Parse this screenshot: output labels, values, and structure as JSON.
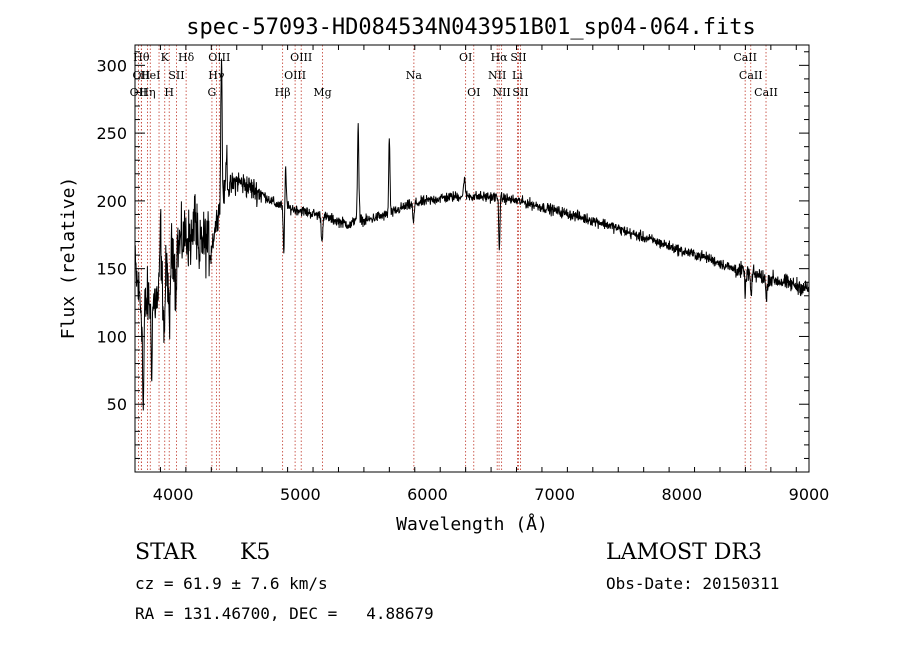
{
  "chart_data": {
    "type": "line",
    "title": "spec-57093-HD084534N043951B01_sp04-064.fits",
    "xlabel": "Wavelength (Å)",
    "ylabel": "Flux (relative)",
    "xlim": [
      3700,
      9000
    ],
    "ylim": [
      0,
      315
    ],
    "xticks": [
      "4000",
      "5000",
      "6000",
      "7000",
      "8000",
      "9000"
    ],
    "yticks": [
      "50",
      "100",
      "150",
      "200",
      "250",
      "300"
    ],
    "lines": [
      {
        "wl": 3727,
        "label": "OII",
        "row": 2
      },
      {
        "wl": 3750,
        "label": "Hθ",
        "row": 0
      },
      {
        "wl": 3750,
        "label": "OII",
        "row": 1
      },
      {
        "wl": 3798,
        "label": "Hη",
        "row": 2
      },
      {
        "wl": 3820,
        "label": "HeI",
        "row": 1
      },
      {
        "wl": 3889,
        "label": "",
        "row": 1
      },
      {
        "wl": 3934,
        "label": "K",
        "row": 0
      },
      {
        "wl": 3969,
        "label": "H",
        "row": 2
      },
      {
        "wl": 4026,
        "label": "SII",
        "row": 1
      },
      {
        "wl": 4102,
        "label": "Hδ",
        "row": 0
      },
      {
        "wl": 4305,
        "label": "G",
        "row": 2
      },
      {
        "wl": 4340,
        "label": "Hγ",
        "row": 1
      },
      {
        "wl": 4363,
        "label": "OIII",
        "row": 0
      },
      {
        "wl": 4861,
        "label": "Hβ",
        "row": 2
      },
      {
        "wl": 4959,
        "label": "OIII",
        "row": 1
      },
      {
        "wl": 5007,
        "label": "OIII",
        "row": 0
      },
      {
        "wl": 5175,
        "label": "Mg",
        "row": 2
      },
      {
        "wl": 5893,
        "label": "Na",
        "row": 1
      },
      {
        "wl": 6300,
        "label": "OI",
        "row": 0
      },
      {
        "wl": 6364,
        "label": "OI",
        "row": 2
      },
      {
        "wl": 6548,
        "label": "NII",
        "row": 1
      },
      {
        "wl": 6563,
        "label": "Hα",
        "row": 0
      },
      {
        "wl": 6583,
        "label": "NII",
        "row": 2
      },
      {
        "wl": 6707,
        "label": "Li",
        "row": 1
      },
      {
        "wl": 6716,
        "label": "SII",
        "row": 0
      },
      {
        "wl": 6731,
        "label": "SII",
        "row": 2
      },
      {
        "wl": 8498,
        "label": "CaII",
        "row": 0
      },
      {
        "wl": 8542,
        "label": "CaII",
        "row": 1
      },
      {
        "wl": 8662,
        "label": "CaII",
        "row": 2
      }
    ],
    "spectrum_nodes": [
      [
        3700,
        150
      ],
      [
        3760,
        115
      ],
      [
        3800,
        128
      ],
      [
        3850,
        125
      ],
      [
        3900,
        130
      ],
      [
        3950,
        148
      ],
      [
        4000,
        165
      ],
      [
        4050,
        168
      ],
      [
        4100,
        175
      ],
      [
        4150,
        170
      ],
      [
        4200,
        172
      ],
      [
        4250,
        170
      ],
      [
        4300,
        165
      ],
      [
        4350,
        190
      ],
      [
        4400,
        205
      ],
      [
        4500,
        215
      ],
      [
        4600,
        210
      ],
      [
        4700,
        205
      ],
      [
        4800,
        198
      ],
      [
        4900,
        195
      ],
      [
        5000,
        193
      ],
      [
        5200,
        188
      ],
      [
        5400,
        182
      ],
      [
        5450,
        190
      ],
      [
        5500,
        185
      ],
      [
        5600,
        188
      ],
      [
        5700,
        190
      ],
      [
        5800,
        195
      ],
      [
        5900,
        198
      ],
      [
        6000,
        200
      ],
      [
        6100,
        202
      ],
      [
        6200,
        203
      ],
      [
        6300,
        204
      ],
      [
        6400,
        203
      ],
      [
        6500,
        203
      ],
      [
        6600,
        202
      ],
      [
        6700,
        200
      ],
      [
        6800,
        198
      ],
      [
        7000,
        193
      ],
      [
        7200,
        188
      ],
      [
        7400,
        183
      ],
      [
        7600,
        176
      ],
      [
        7800,
        170
      ],
      [
        8000,
        163
      ],
      [
        8200,
        158
      ],
      [
        8400,
        150
      ],
      [
        8600,
        145
      ],
      [
        8800,
        140
      ],
      [
        9000,
        135
      ]
    ],
    "spectrum_features": [
      [
        3765,
        -70
      ],
      [
        3830,
        -45
      ],
      [
        3900,
        50
      ],
      [
        3930,
        -40
      ],
      [
        3970,
        -60
      ],
      [
        4020,
        -35
      ],
      [
        4170,
        35
      ],
      [
        4205,
        -25
      ],
      [
        4380,
        110
      ],
      [
        4420,
        30
      ],
      [
        4870,
        -35
      ],
      [
        4885,
        30
      ],
      [
        5170,
        -20
      ],
      [
        5455,
        65
      ],
      [
        5700,
        55
      ],
      [
        5890,
        -15
      ],
      [
        6290,
        15
      ],
      [
        6565,
        -35
      ],
      [
        8500,
        -15
      ],
      [
        8545,
        -18
      ],
      [
        8665,
        -18
      ]
    ]
  },
  "info": {
    "object_class": "STAR",
    "subclass": "K5",
    "survey": "LAMOST DR3",
    "redshift": "cz = 61.9 ± 7.6 km/s",
    "obs_date": "Obs-Date: 20150311",
    "coords": "RA = 131.46700, DEC =   4.88679"
  }
}
